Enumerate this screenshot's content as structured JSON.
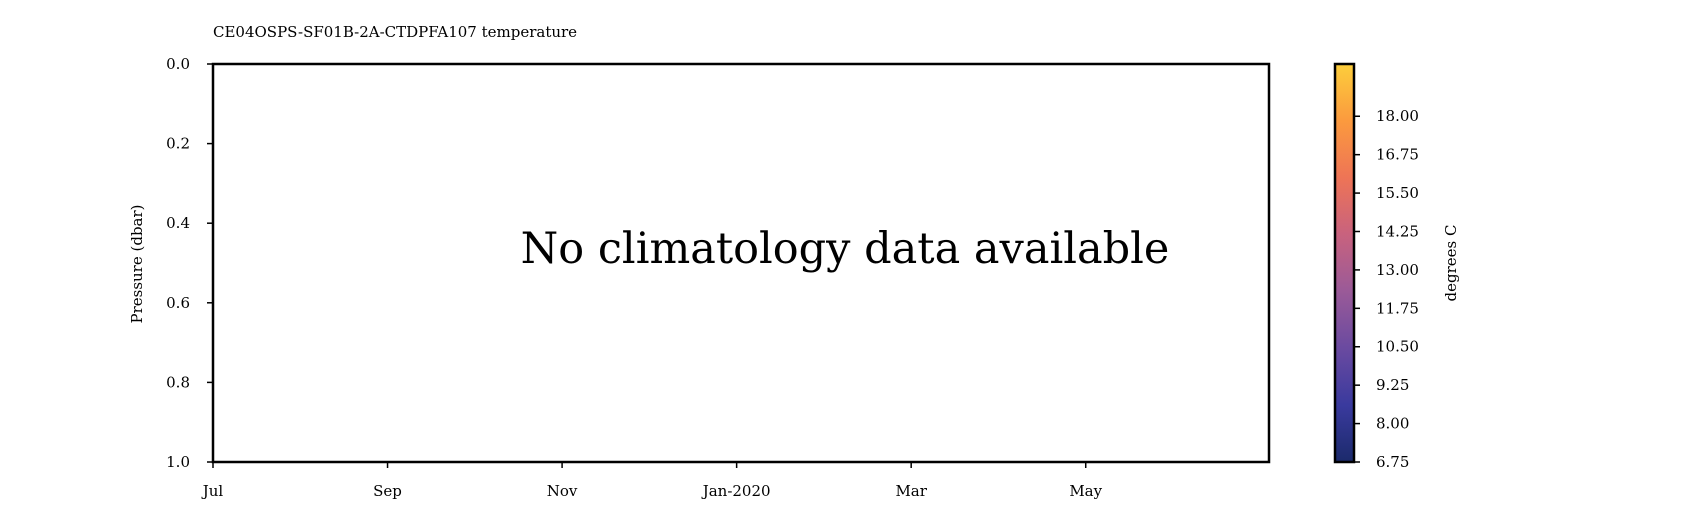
{
  "chart_data": {
    "type": "heatmap",
    "title": "CE04OSPS-SF01B-2A-CTDPFA107 temperature",
    "message": "No climatology data available",
    "xlabel": "",
    "ylabel": "Pressure (dbar)",
    "x_ticks": [
      "Jul",
      "Sep",
      "Nov",
      "Jan-2020",
      "Mar",
      "May"
    ],
    "y_ticks": [
      "0.0",
      "0.2",
      "0.4",
      "0.6",
      "0.8",
      "1.0"
    ],
    "y_tick_values": [
      0.0,
      0.2,
      0.4,
      0.6,
      0.8,
      1.0
    ],
    "ylim": [
      1.0,
      0.0
    ],
    "y_inverted": true,
    "values": [],
    "grid": false,
    "colorbar": {
      "label": "degrees C",
      "ticks": [
        "6.75",
        "8.00",
        "9.25",
        "10.50",
        "11.75",
        "13.00",
        "14.25",
        "15.50",
        "16.75",
        "18.00"
      ],
      "tick_values": [
        6.75,
        8.0,
        9.25,
        10.5,
        11.75,
        13.0,
        14.25,
        15.5,
        16.75,
        18.0
      ],
      "range": [
        6.75,
        19.7
      ],
      "colormap_stops": [
        "#1b2a6b",
        "#3a3a9e",
        "#6a4aa0",
        "#9a5a98",
        "#c8627e",
        "#ee7456",
        "#fb9a3e",
        "#fcce3c"
      ]
    }
  }
}
